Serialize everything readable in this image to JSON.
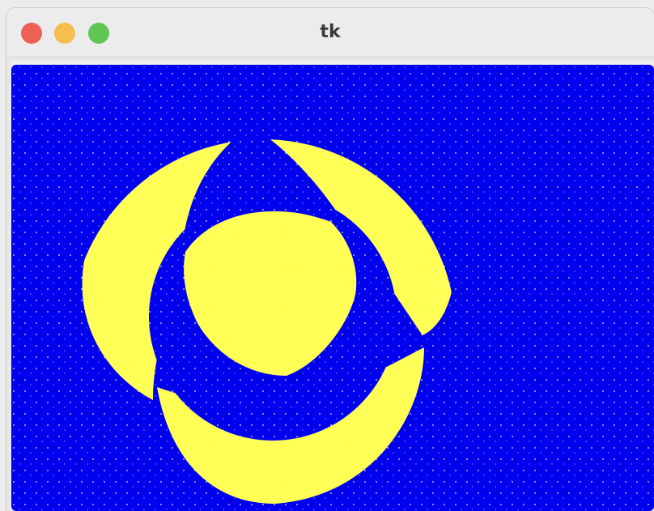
{
  "window": {
    "title": "tk"
  },
  "colors": {
    "background": "#0000ee",
    "foreground": "#ffff55",
    "close": "#ee5f57",
    "minimize": "#f5be4f",
    "maximize": "#62c655"
  },
  "icons": {
    "close": "close-traffic-light-icon",
    "minimize": "minimize-traffic-light-icon",
    "maximize": "maximize-traffic-light-icon"
  }
}
